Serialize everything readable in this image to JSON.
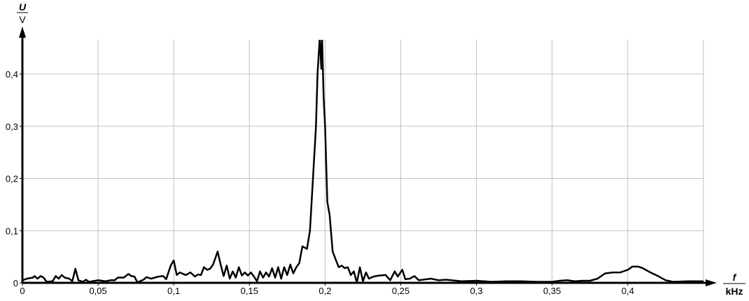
{
  "chart_data": {
    "type": "line",
    "title": "",
    "xlabel": {
      "symbol": "f",
      "unit": "kHz"
    },
    "ylabel": {
      "symbol": "U",
      "unit": "V"
    },
    "xlim": [
      0,
      0.451
    ],
    "ylim": [
      0,
      0.466
    ],
    "grid": true,
    "x_ticks": [
      0,
      0.05,
      0.1,
      0.15,
      0.2,
      0.25,
      0.3,
      0.35,
      0.4
    ],
    "x_tick_labels": [
      "0",
      "0,05",
      "0,1",
      "0,15",
      "0,2",
      "0,25",
      "0,3",
      "0,35",
      "0,4"
    ],
    "y_ticks": [
      0,
      0.1,
      0.2,
      0.3,
      0.4
    ],
    "y_tick_labels": [
      "0",
      "0,1",
      "0,2",
      "0,3",
      "0,4"
    ],
    "line_color": "#000000",
    "grid_color": "#c0c0c0",
    "series": [
      {
        "x": [
          0,
          0.003,
          0.007,
          0.008,
          0.01,
          0.012,
          0.014,
          0.016,
          0.02,
          0.022,
          0.024,
          0.026,
          0.028,
          0.031,
          0.033,
          0.035,
          0.037,
          0.04,
          0.042,
          0.044,
          0.05,
          0.055,
          0.058,
          0.061,
          0.063,
          0.067,
          0.07,
          0.072,
          0.074,
          0.076,
          0.08,
          0.082,
          0.085,
          0.09,
          0.093,
          0.095,
          0.098,
          0.1,
          0.102,
          0.104,
          0.108,
          0.111,
          0.114,
          0.116,
          0.118,
          0.12,
          0.122,
          0.124,
          0.126,
          0.129,
          0.131,
          0.133,
          0.135,
          0.137,
          0.139,
          0.141,
          0.143,
          0.145,
          0.147,
          0.149,
          0.151,
          0.153,
          0.155,
          0.157,
          0.159,
          0.161,
          0.163,
          0.165,
          0.167,
          0.169,
          0.171,
          0.173,
          0.175,
          0.177,
          0.179,
          0.181,
          0.183,
          0.185,
          0.188,
          0.19,
          0.192,
          0.194,
          0.195,
          0.1965,
          0.1975,
          0.198,
          0.199,
          0.2,
          0.201,
          0.2015,
          0.203,
          0.205,
          0.207,
          0.209,
          0.211,
          0.213,
          0.215,
          0.217,
          0.219,
          0.221,
          0.223,
          0.225,
          0.227,
          0.229,
          0.232,
          0.236,
          0.24,
          0.243,
          0.246,
          0.248,
          0.251,
          0.253,
          0.256,
          0.259,
          0.262,
          0.27,
          0.275,
          0.28,
          0.29,
          0.3,
          0.31,
          0.32,
          0.33,
          0.34,
          0.35,
          0.355,
          0.36,
          0.365,
          0.37,
          0.375,
          0.38,
          0.385,
          0.39,
          0.395,
          0.4,
          0.403,
          0.407,
          0.41,
          0.415,
          0.42,
          0.425,
          0.43,
          0.44,
          0.45
        ],
        "y": [
          0.005,
          0.008,
          0.01,
          0.013,
          0.008,
          0.013,
          0.01,
          0.002,
          0.003,
          0.013,
          0.008,
          0.015,
          0.01,
          0.008,
          0.003,
          0.027,
          0.005,
          0.002,
          0.006,
          0.002,
          0.005,
          0.003,
          0.005,
          0.005,
          0.01,
          0.01,
          0.017,
          0.013,
          0.012,
          0.001,
          0.006,
          0.011,
          0.008,
          0.012,
          0.013,
          0.007,
          0.033,
          0.043,
          0.015,
          0.02,
          0.015,
          0.02,
          0.012,
          0.016,
          0.015,
          0.03,
          0.025,
          0.027,
          0.035,
          0.06,
          0.035,
          0.013,
          0.033,
          0.008,
          0.022,
          0.01,
          0.03,
          0.014,
          0.02,
          0.014,
          0.02,
          0.012,
          0.003,
          0.022,
          0.01,
          0.02,
          0.012,
          0.028,
          0.01,
          0.03,
          0.008,
          0.03,
          0.015,
          0.035,
          0.018,
          0.03,
          0.038,
          0.07,
          0.065,
          0.1,
          0.2,
          0.3,
          0.4,
          0.47,
          0.41,
          0.47,
          0.36,
          0.3,
          0.2,
          0.155,
          0.13,
          0.06,
          0.045,
          0.03,
          0.033,
          0.028,
          0.03,
          0.015,
          0.022,
          0.0,
          0.03,
          0.003,
          0.02,
          0.008,
          0.012,
          0.014,
          0.015,
          0.005,
          0.022,
          0.012,
          0.025,
          0.007,
          0.008,
          0.013,
          0.005,
          0.008,
          0.005,
          0.006,
          0.003,
          0.004,
          0.002,
          0.003,
          0.003,
          0.002,
          0.002,
          0.004,
          0.005,
          0.003,
          0.004,
          0.004,
          0.008,
          0.018,
          0.02,
          0.02,
          0.025,
          0.031,
          0.031,
          0.028,
          0.02,
          0.013,
          0.005,
          0.002,
          0.003,
          0.003
        ]
      }
    ]
  }
}
